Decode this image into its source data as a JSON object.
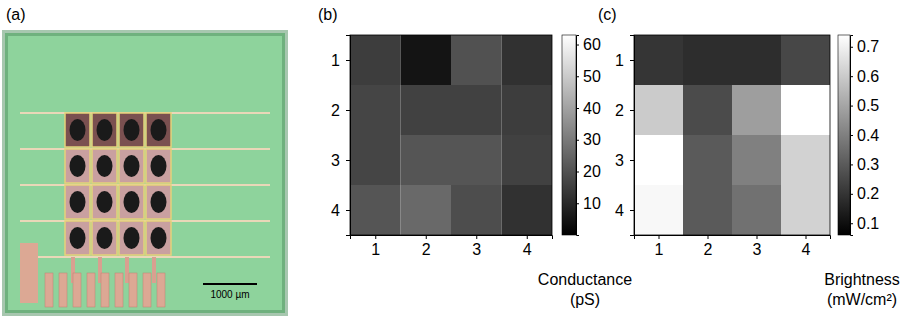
{
  "chart_data": [
    {
      "type": "image",
      "panel_label": "(a)",
      "scale_bar_label": "1000 µm"
    },
    {
      "type": "heatmap",
      "panel_label": "(b)",
      "x": [
        1,
        2,
        3,
        4
      ],
      "y": [
        1,
        2,
        3,
        4
      ],
      "xlim": [
        0.5,
        4.5
      ],
      "ylim": [
        4.5,
        0.5
      ],
      "xticks": [
        1,
        2,
        3,
        4
      ],
      "yticks": [
        1,
        2,
        3,
        4
      ],
      "cells": [
        [
          15,
          5,
          20,
          12
        ],
        [
          17,
          16,
          16,
          15
        ],
        [
          17,
          21,
          21,
          16
        ],
        [
          21,
          26,
          19,
          12
        ]
      ],
      "colorbar_lim": [
        0,
        63
      ],
      "colorbar_ticks": [
        10,
        20,
        30,
        40,
        50,
        60
      ],
      "colorbar_title": "Conductance (pS)"
    },
    {
      "type": "heatmap",
      "panel_label": "(c)",
      "x": [
        1,
        2,
        3,
        4
      ],
      "y": [
        1,
        2,
        3,
        4
      ],
      "xlim": [
        0.5,
        4.5
      ],
      "ylim": [
        4.5,
        0.5
      ],
      "xticks": [
        1,
        2,
        3,
        4
      ],
      "yticks": [
        1,
        2,
        3,
        4
      ],
      "cells": [
        [
          0.2,
          0.18,
          0.18,
          0.25
        ],
        [
          0.6,
          0.26,
          0.48,
          0.74
        ],
        [
          0.74,
          0.3,
          0.4,
          0.62
        ],
        [
          0.72,
          0.3,
          0.36,
          0.62
        ]
      ],
      "colorbar_lim": [
        0.06,
        0.74
      ],
      "colorbar_ticks": [
        0.1,
        0.2,
        0.3,
        0.4,
        0.5,
        0.6,
        0.7
      ],
      "colorbar_title": "Brightness (mW/cm²)"
    }
  ]
}
